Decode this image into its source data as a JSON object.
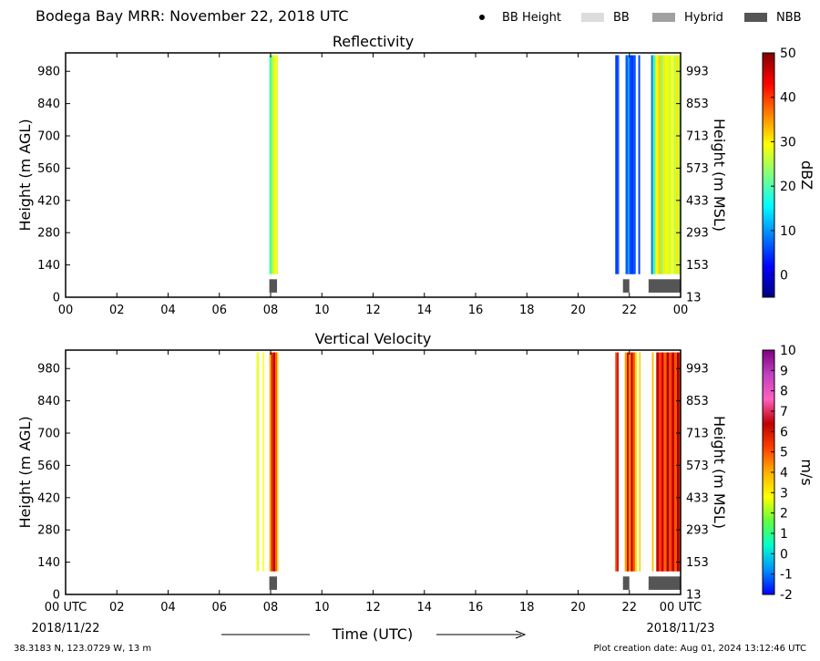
{
  "header": {
    "title": "Bodega Bay MRR:  November 22, 2018 UTC",
    "legend": [
      {
        "label": "BB Height",
        "kind": "dot",
        "color": "#000000"
      },
      {
        "label": "BB",
        "kind": "box",
        "color": "#dcdcdc"
      },
      {
        "label": "Hybrid",
        "kind": "box",
        "color": "#a0a0a0"
      },
      {
        "label": "NBB",
        "kind": "box",
        "color": "#555555"
      }
    ]
  },
  "footer": {
    "location": "38.3183 N, 123.0729 W, 13 m",
    "creation": "Plot creation date: Aug 01, 2024 13:12:46 UTC",
    "xlabel": "Time (UTC)",
    "date_start": "2018/11/22",
    "date_end": "2018/11/23"
  },
  "chart_data": [
    {
      "type": "heatmap",
      "title": "Reflectivity",
      "ylabel": "Height (m AGL)",
      "ylabel_right": "Height (m MSL)",
      "xlim_hours": [
        0,
        24
      ],
      "x_tick_labels": [
        "00",
        "02",
        "04",
        "06",
        "08",
        "10",
        "12",
        "14",
        "16",
        "18",
        "20",
        "22",
        "00"
      ],
      "ylim_m": [
        0,
        1060
      ],
      "y_ticks_agl": [
        0,
        140,
        280,
        420,
        560,
        700,
        840,
        980
      ],
      "y_ticks_msl": [
        13,
        153,
        293,
        433,
        573,
        713,
        853,
        993
      ],
      "data_range_m": [
        100,
        1050
      ],
      "colorbar": {
        "label": "dBZ",
        "min": -5,
        "max": 50,
        "ticks": [
          0,
          10,
          20,
          30,
          40,
          50
        ],
        "stops": [
          "#00007f",
          "#0000ff",
          "#007fff",
          "#00ffff",
          "#7fff7f",
          "#ffff00",
          "#ff7f00",
          "#ff0000",
          "#7f0000"
        ]
      },
      "columns": [
        {
          "start": 7.95,
          "end": 8.0,
          "color": "#33ffc8"
        },
        {
          "start": 8.0,
          "end": 8.08,
          "color": "#7fff55"
        },
        {
          "start": 8.08,
          "end": 8.15,
          "color": "#c8ff30"
        },
        {
          "start": 8.15,
          "end": 8.22,
          "color": "#ffff00"
        },
        {
          "start": 8.22,
          "end": 8.28,
          "color": "#dfff20"
        },
        {
          "start": 21.45,
          "end": 21.55,
          "color": "#0040ff"
        },
        {
          "start": 21.55,
          "end": 21.6,
          "color": "#0a50ff"
        },
        {
          "start": 21.85,
          "end": 21.95,
          "color": "#0060ff"
        },
        {
          "start": 21.95,
          "end": 22.0,
          "color": "#00a8ff"
        },
        {
          "start": 22.0,
          "end": 22.08,
          "color": "#0048ff"
        },
        {
          "start": 22.08,
          "end": 22.15,
          "color": "#0030ff"
        },
        {
          "start": 22.15,
          "end": 22.25,
          "color": "#0058ff"
        },
        {
          "start": 22.35,
          "end": 22.42,
          "color": "#0040ff"
        },
        {
          "start": 22.85,
          "end": 22.92,
          "color": "#0070ff"
        },
        {
          "start": 22.92,
          "end": 23.02,
          "color": "#40ffb0"
        },
        {
          "start": 23.02,
          "end": 23.12,
          "color": "#ffff00"
        },
        {
          "start": 23.12,
          "end": 23.22,
          "color": "#ffd000"
        },
        {
          "start": 23.22,
          "end": 23.32,
          "color": "#90ff60"
        },
        {
          "start": 23.32,
          "end": 23.42,
          "color": "#ffee00"
        },
        {
          "start": 23.42,
          "end": 23.52,
          "color": "#e8ff10"
        },
        {
          "start": 23.52,
          "end": 23.62,
          "color": "#d0ff20"
        },
        {
          "start": 23.62,
          "end": 23.72,
          "color": "#ffff30"
        },
        {
          "start": 23.72,
          "end": 23.82,
          "color": "#c0ff40"
        },
        {
          "start": 23.82,
          "end": 23.92,
          "color": "#ffe800"
        },
        {
          "start": 23.92,
          "end": 24.0,
          "color": "#a8ff50"
        }
      ],
      "bright_band": [
        {
          "start": 7.95,
          "end": 8.25,
          "type": "NBB"
        },
        {
          "start": 21.75,
          "end": 22.0,
          "type": "NBB"
        },
        {
          "start": 22.75,
          "end": 24.0,
          "type": "NBB"
        }
      ]
    },
    {
      "type": "heatmap",
      "title": "Vertical Velocity",
      "ylabel": "Height (m AGL)",
      "ylabel_right": "Height (m MSL)",
      "xlim_hours": [
        0,
        24
      ],
      "x_tick_labels": [
        "00 UTC",
        "02",
        "04",
        "06",
        "08",
        "10",
        "12",
        "14",
        "16",
        "18",
        "20",
        "22",
        "00 UTC"
      ],
      "ylim_m": [
        0,
        1060
      ],
      "y_ticks_agl": [
        0,
        140,
        280,
        420,
        560,
        700,
        840,
        980
      ],
      "y_ticks_msl": [
        13,
        153,
        293,
        433,
        573,
        713,
        853,
        993
      ],
      "data_range_m": [
        100,
        1050
      ],
      "colorbar": {
        "label": "m/s",
        "min": -2,
        "max": 10,
        "ticks": [
          -2,
          -1,
          0,
          1,
          2,
          3,
          4,
          5,
          6,
          7,
          8,
          9,
          10
        ],
        "stops": [
          "#0000ff",
          "#0090ff",
          "#00ffcc",
          "#60ff40",
          "#ffff00",
          "#ffb000",
          "#ff4000",
          "#c00000",
          "#ff60c0",
          "#c040c0",
          "#800080"
        ]
      },
      "columns": [
        {
          "start": 7.45,
          "end": 7.55,
          "color": "#e8ff30"
        },
        {
          "start": 7.68,
          "end": 7.75,
          "color": "#ffff40"
        },
        {
          "start": 7.95,
          "end": 8.02,
          "color": "#ffb000"
        },
        {
          "start": 8.02,
          "end": 8.1,
          "color": "#e02000"
        },
        {
          "start": 8.1,
          "end": 8.18,
          "color": "#c00000"
        },
        {
          "start": 8.18,
          "end": 8.25,
          "color": "#ff6000"
        },
        {
          "start": 8.25,
          "end": 8.3,
          "color": "#ffd000"
        },
        {
          "start": 21.45,
          "end": 21.52,
          "color": "#ff4000"
        },
        {
          "start": 21.52,
          "end": 21.58,
          "color": "#c00000"
        },
        {
          "start": 21.82,
          "end": 21.9,
          "color": "#ffa000"
        },
        {
          "start": 21.9,
          "end": 21.98,
          "color": "#d01000"
        },
        {
          "start": 21.98,
          "end": 22.06,
          "color": "#ff8000"
        },
        {
          "start": 22.06,
          "end": 22.14,
          "color": "#c00000"
        },
        {
          "start": 22.14,
          "end": 22.22,
          "color": "#ff5000"
        },
        {
          "start": 22.22,
          "end": 22.3,
          "color": "#ffe000"
        },
        {
          "start": 22.38,
          "end": 22.44,
          "color": "#ffd000"
        },
        {
          "start": 22.88,
          "end": 22.95,
          "color": "#ffc000"
        },
        {
          "start": 23.05,
          "end": 23.15,
          "color": "#c00000"
        },
        {
          "start": 23.15,
          "end": 23.25,
          "color": "#ff3000"
        },
        {
          "start": 23.25,
          "end": 23.35,
          "color": "#d00000"
        },
        {
          "start": 23.35,
          "end": 23.45,
          "color": "#ff6000"
        },
        {
          "start": 23.45,
          "end": 23.55,
          "color": "#b00000"
        },
        {
          "start": 23.55,
          "end": 23.65,
          "color": "#ff4000"
        },
        {
          "start": 23.65,
          "end": 23.75,
          "color": "#c00000"
        },
        {
          "start": 23.75,
          "end": 23.85,
          "color": "#ff5000"
        },
        {
          "start": 23.85,
          "end": 23.95,
          "color": "#a00000"
        },
        {
          "start": 23.95,
          "end": 24.0,
          "color": "#ff3000"
        }
      ],
      "bright_band": [
        {
          "start": 7.95,
          "end": 8.25,
          "type": "NBB"
        },
        {
          "start": 21.75,
          "end": 22.0,
          "type": "NBB"
        },
        {
          "start": 22.75,
          "end": 24.0,
          "type": "NBB"
        }
      ]
    }
  ]
}
